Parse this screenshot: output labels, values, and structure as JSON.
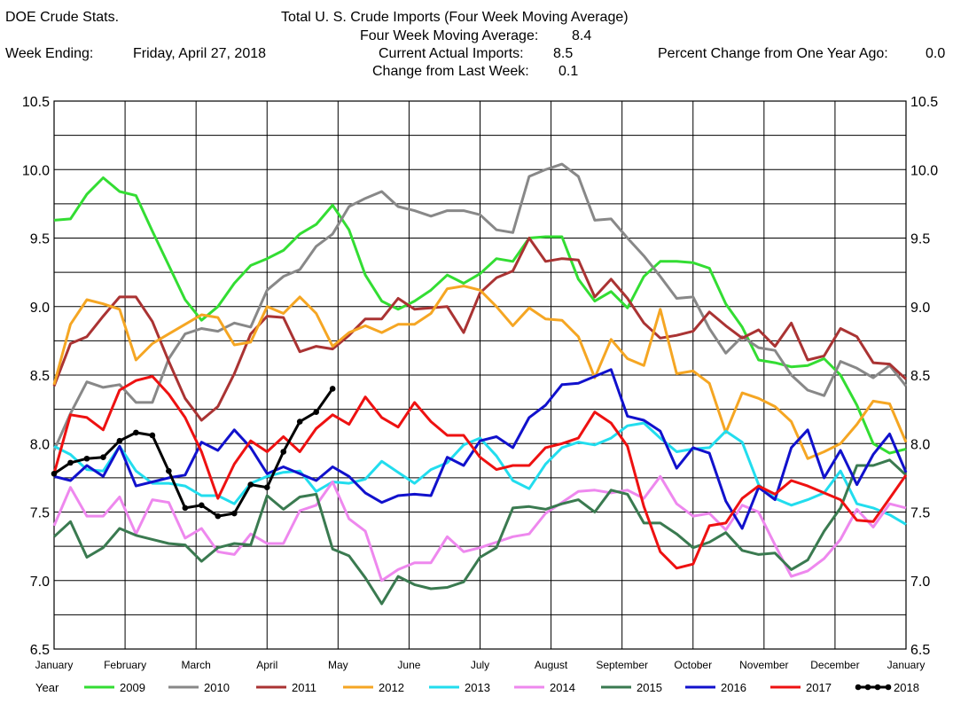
{
  "header": {
    "source": "DOE Crude Stats.",
    "title": "Total U.  S. Crude Imports (Four Week Moving Average)",
    "four_week_label": "Four Week Moving Average:",
    "four_week_value": "8.4",
    "week_ending_label": "Week Ending:",
    "week_ending_value": "Friday, April 27, 2018",
    "current_label": "Current Actual Imports:",
    "current_value": "8.5",
    "change_label": "Change from Last Week:",
    "change_value": "0.1",
    "pct_label": "Percent Change from One Year Ago:",
    "pct_value": "0.0"
  },
  "chart_data": {
    "type": "line",
    "title": "Total U.  S. Crude Imports (Four Week Moving Average)",
    "xlabel": "",
    "ylabel": "",
    "ylim": [
      6.5,
      10.5
    ],
    "yticks": [
      "6.5",
      "7.0",
      "7.5",
      "8.0",
      "8.5",
      "9.0",
      "9.5",
      "10.0",
      "10.5"
    ],
    "xlim": [
      0,
      12
    ],
    "xticks": [
      "January",
      "February",
      "March",
      "April",
      "May",
      "June",
      "July",
      "August",
      "September",
      "October",
      "November",
      "December",
      "January"
    ],
    "grid": true,
    "legend_title": "Year",
    "legend_position": "bottom",
    "series": [
      {
        "name": "2009",
        "color": "#33dd33",
        "marker": false,
        "values": [
          9.63,
          9.64,
          9.82,
          9.94,
          9.84,
          9.81,
          9.55,
          9.3,
          9.05,
          8.9,
          9.0,
          9.17,
          9.3,
          9.35,
          9.41,
          9.53,
          9.6,
          9.74,
          9.56,
          9.23,
          9.04,
          8.98,
          9.04,
          9.12,
          9.23,
          9.17,
          9.24,
          9.35,
          9.33,
          9.5,
          9.51,
          9.51,
          9.2,
          9.04,
          9.11,
          8.99,
          9.22,
          9.33,
          9.33,
          9.32,
          9.28,
          9.02,
          8.85,
          8.61,
          8.59,
          8.56,
          8.57,
          8.62,
          8.5,
          8.28,
          8.0,
          7.93,
          7.96
        ]
      },
      {
        "name": "2010",
        "color": "#888888",
        "marker": false,
        "values": [
          7.95,
          8.22,
          8.45,
          8.41,
          8.43,
          8.3,
          8.3,
          8.62,
          8.8,
          8.84,
          8.82,
          8.88,
          8.85,
          9.12,
          9.22,
          9.27,
          9.44,
          9.53,
          9.73,
          9.79,
          9.84,
          9.73,
          9.7,
          9.66,
          9.7,
          9.7,
          9.67,
          9.56,
          9.54,
          9.95,
          10.0,
          10.04,
          9.95,
          9.63,
          9.64,
          9.5,
          9.37,
          9.22,
          9.06,
          9.07,
          8.84,
          8.66,
          8.78,
          8.7,
          8.68,
          8.5,
          8.39,
          8.35,
          8.6,
          8.55,
          8.48,
          8.57,
          8.42
        ]
      },
      {
        "name": "2011",
        "color": "#aa3333",
        "marker": false,
        "values": [
          8.42,
          8.73,
          8.78,
          8.93,
          9.07,
          9.07,
          8.89,
          8.6,
          8.33,
          8.17,
          8.27,
          8.51,
          8.8,
          8.93,
          8.92,
          8.67,
          8.71,
          8.69,
          8.79,
          8.91,
          8.91,
          9.06,
          8.98,
          8.99,
          9.0,
          8.81,
          9.1,
          9.21,
          9.26,
          9.5,
          9.33,
          9.35,
          9.34,
          9.07,
          9.2,
          9.06,
          8.88,
          8.77,
          8.79,
          8.82,
          8.96,
          8.86,
          8.77,
          8.83,
          8.71,
          8.88,
          8.61,
          8.64,
          8.84,
          8.78,
          8.59,
          8.58,
          8.47
        ]
      },
      {
        "name": "2012",
        "color": "#f5a623",
        "marker": false,
        "values": [
          8.43,
          8.87,
          9.05,
          9.02,
          8.98,
          8.61,
          8.73,
          8.8,
          8.87,
          8.94,
          8.92,
          8.72,
          8.74,
          9.0,
          8.95,
          9.07,
          8.95,
          8.71,
          8.81,
          8.86,
          8.81,
          8.87,
          8.87,
          8.95,
          9.13,
          9.15,
          9.12,
          9.0,
          8.86,
          8.99,
          8.91,
          8.9,
          8.78,
          8.48,
          8.76,
          8.62,
          8.57,
          8.98,
          8.51,
          8.53,
          8.44,
          8.08,
          8.37,
          8.33,
          8.27,
          8.16,
          7.89,
          7.94,
          8.0,
          8.14,
          8.31,
          8.29,
          8.01
        ]
      },
      {
        "name": "2013",
        "color": "#22ddee",
        "marker": false,
        "values": [
          7.98,
          7.92,
          7.81,
          7.8,
          7.98,
          7.8,
          7.71,
          7.71,
          7.69,
          7.62,
          7.62,
          7.56,
          7.71,
          7.76,
          7.79,
          7.8,
          7.65,
          7.72,
          7.71,
          7.74,
          7.87,
          7.79,
          7.71,
          7.81,
          7.86,
          7.99,
          8.04,
          7.91,
          7.73,
          7.67,
          7.85,
          7.97,
          8.01,
          7.99,
          8.04,
          8.13,
          8.15,
          8.04,
          7.94,
          7.96,
          7.97,
          8.09,
          8.01,
          7.7,
          7.6,
          7.55,
          7.59,
          7.64,
          7.8,
          7.56,
          7.53,
          7.48,
          7.41
        ]
      },
      {
        "name": "2014",
        "color": "#ee88ee",
        "marker": false,
        "values": [
          7.4,
          7.68,
          7.47,
          7.47,
          7.61,
          7.34,
          7.59,
          7.57,
          7.31,
          7.38,
          7.21,
          7.19,
          7.34,
          7.27,
          7.27,
          7.51,
          7.55,
          7.72,
          7.45,
          7.36,
          7.0,
          7.08,
          7.13,
          7.13,
          7.32,
          7.21,
          7.24,
          7.28,
          7.32,
          7.34,
          7.49,
          7.57,
          7.65,
          7.66,
          7.64,
          7.66,
          7.6,
          7.76,
          7.56,
          7.47,
          7.49,
          7.37,
          7.55,
          7.5,
          7.26,
          7.03,
          7.07,
          7.16,
          7.3,
          7.52,
          7.39,
          7.56,
          7.53
        ]
      },
      {
        "name": "2015",
        "color": "#3a7a50",
        "marker": false,
        "values": [
          7.32,
          7.43,
          7.17,
          7.24,
          7.38,
          7.33,
          7.3,
          7.27,
          7.26,
          7.14,
          7.24,
          7.27,
          7.26,
          7.62,
          7.52,
          7.61,
          7.63,
          7.23,
          7.18,
          7.02,
          6.83,
          7.03,
          6.97,
          6.94,
          6.95,
          6.99,
          7.17,
          7.24,
          7.53,
          7.54,
          7.52,
          7.56,
          7.59,
          7.5,
          7.66,
          7.63,
          7.42,
          7.42,
          7.34,
          7.24,
          7.28,
          7.35,
          7.22,
          7.19,
          7.2,
          7.08,
          7.15,
          7.36,
          7.53,
          7.84,
          7.84,
          7.88,
          7.77
        ]
      },
      {
        "name": "2016",
        "color": "#1111cc",
        "marker": false,
        "values": [
          7.76,
          7.73,
          7.84,
          7.76,
          7.98,
          7.69,
          7.72,
          7.75,
          7.77,
          8.01,
          7.95,
          8.1,
          7.97,
          7.78,
          7.83,
          7.78,
          7.73,
          7.83,
          7.76,
          7.64,
          7.57,
          7.62,
          7.63,
          7.62,
          7.9,
          7.84,
          8.02,
          8.05,
          7.97,
          8.19,
          8.28,
          8.43,
          8.44,
          8.49,
          8.54,
          8.2,
          8.17,
          8.09,
          7.82,
          7.97,
          7.93,
          7.58,
          7.38,
          7.68,
          7.59,
          7.97,
          8.1,
          7.75,
          7.95,
          7.7,
          7.92,
          8.07,
          7.79
        ]
      },
      {
        "name": "2017",
        "color": "#ee1111",
        "marker": false,
        "values": [
          7.78,
          8.21,
          8.19,
          8.1,
          8.39,
          8.46,
          8.49,
          8.36,
          8.19,
          7.94,
          7.6,
          7.85,
          8.02,
          7.94,
          8.05,
          7.94,
          8.11,
          8.21,
          8.14,
          8.34,
          8.19,
          8.12,
          8.3,
          8.16,
          8.06,
          8.06,
          7.9,
          7.81,
          7.84,
          7.84,
          7.97,
          8.0,
          8.04,
          8.23,
          8.15,
          7.98,
          7.54,
          7.21,
          7.09,
          7.12,
          7.4,
          7.42,
          7.6,
          7.69,
          7.63,
          7.73,
          7.69,
          7.64,
          7.59,
          7.44,
          7.43,
          7.6,
          7.77
        ]
      },
      {
        "name": "2018",
        "color": "#000000",
        "marker": true,
        "values": [
          7.78,
          7.86,
          7.89,
          7.9,
          8.02,
          8.08,
          8.06,
          7.8,
          7.53,
          7.55,
          7.47,
          7.49,
          7.7,
          7.68,
          7.94,
          8.16,
          8.23,
          8.4
        ]
      }
    ]
  }
}
